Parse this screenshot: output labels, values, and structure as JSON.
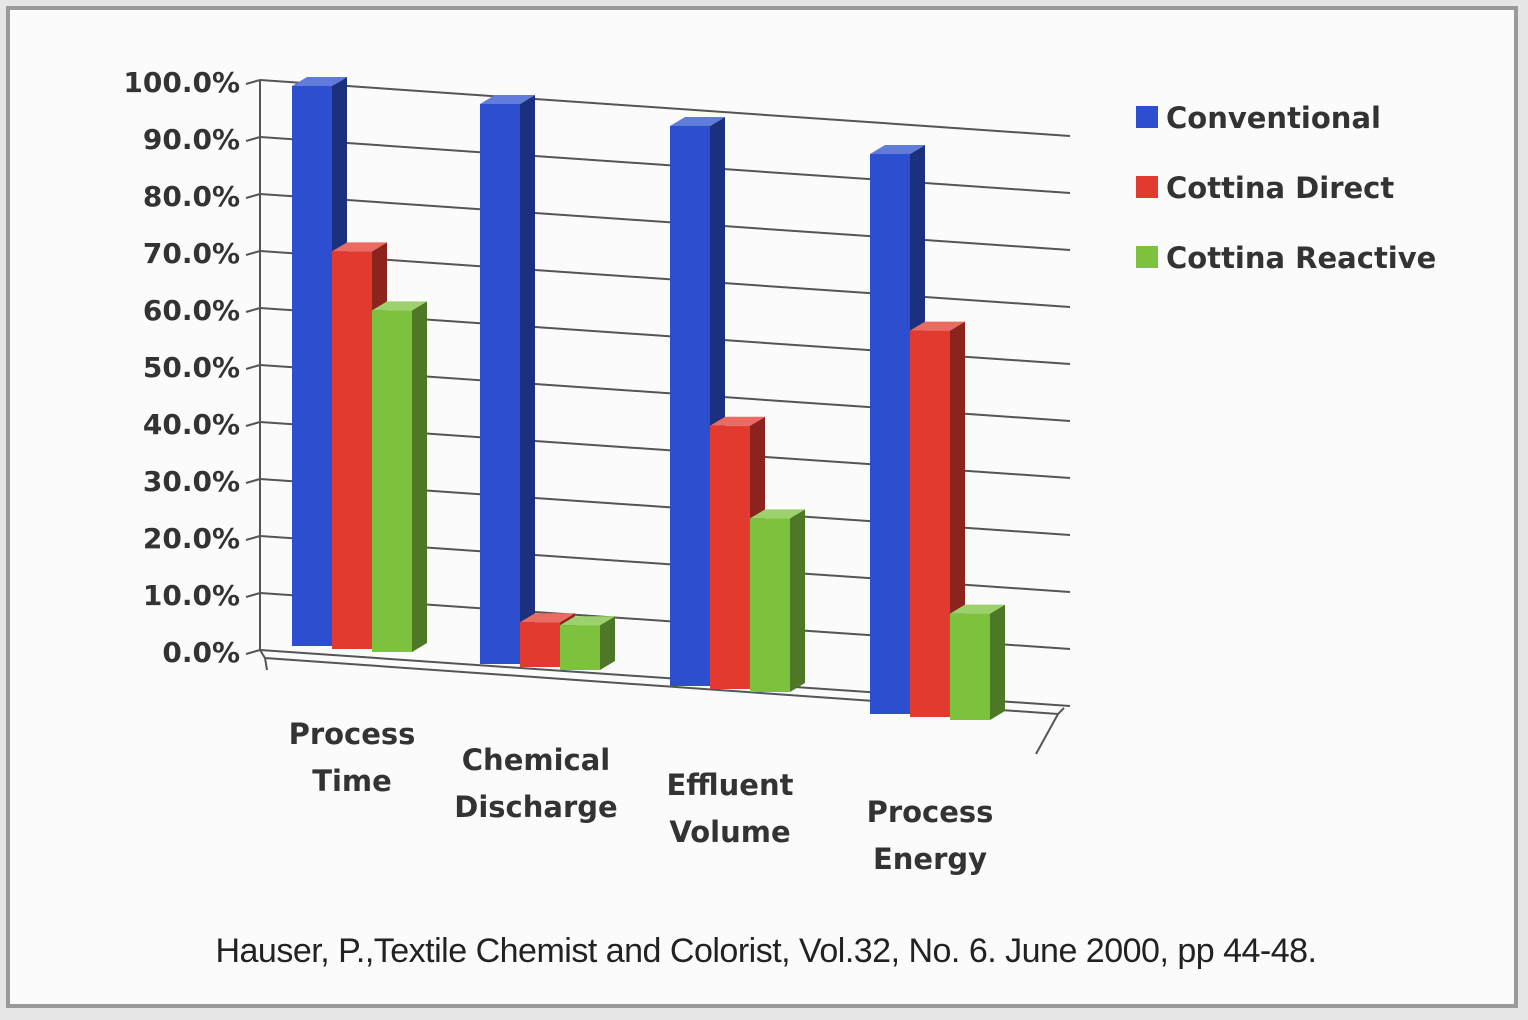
{
  "chart_data": {
    "type": "bar",
    "categories": [
      [
        "Process",
        "Time"
      ],
      [
        "Chemical",
        "Discharge"
      ],
      [
        "Effluent",
        "Volume"
      ],
      [
        "Process",
        "Energy"
      ]
    ],
    "series": [
      {
        "name": "Conventional",
        "color": "#2c4fcf",
        "values": [
          100.0,
          100.0,
          100.0,
          100.0
        ]
      },
      {
        "name": "Cottina Direct",
        "color": "#e23a2e",
        "values": [
          71.0,
          8.0,
          47.0,
          69.0
        ]
      },
      {
        "name": "Cottina Reactive",
        "color": "#7cc23c",
        "values": [
          61.0,
          8.0,
          31.0,
          19.0
        ]
      }
    ],
    "yticks": [
      "0.0%",
      "10.0%",
      "20.0%",
      "30.0%",
      "40.0%",
      "50.0%",
      "60.0%",
      "70.0%",
      "80.0%",
      "90.0%",
      "100.0%"
    ],
    "ylim": [
      0,
      100
    ],
    "grid": true,
    "legend_position": "top-right",
    "three_d": true
  },
  "citation": "Hauser, P.,Textile Chemist and Colorist, Vol.32, No. 6. June 2000, pp 44-48."
}
